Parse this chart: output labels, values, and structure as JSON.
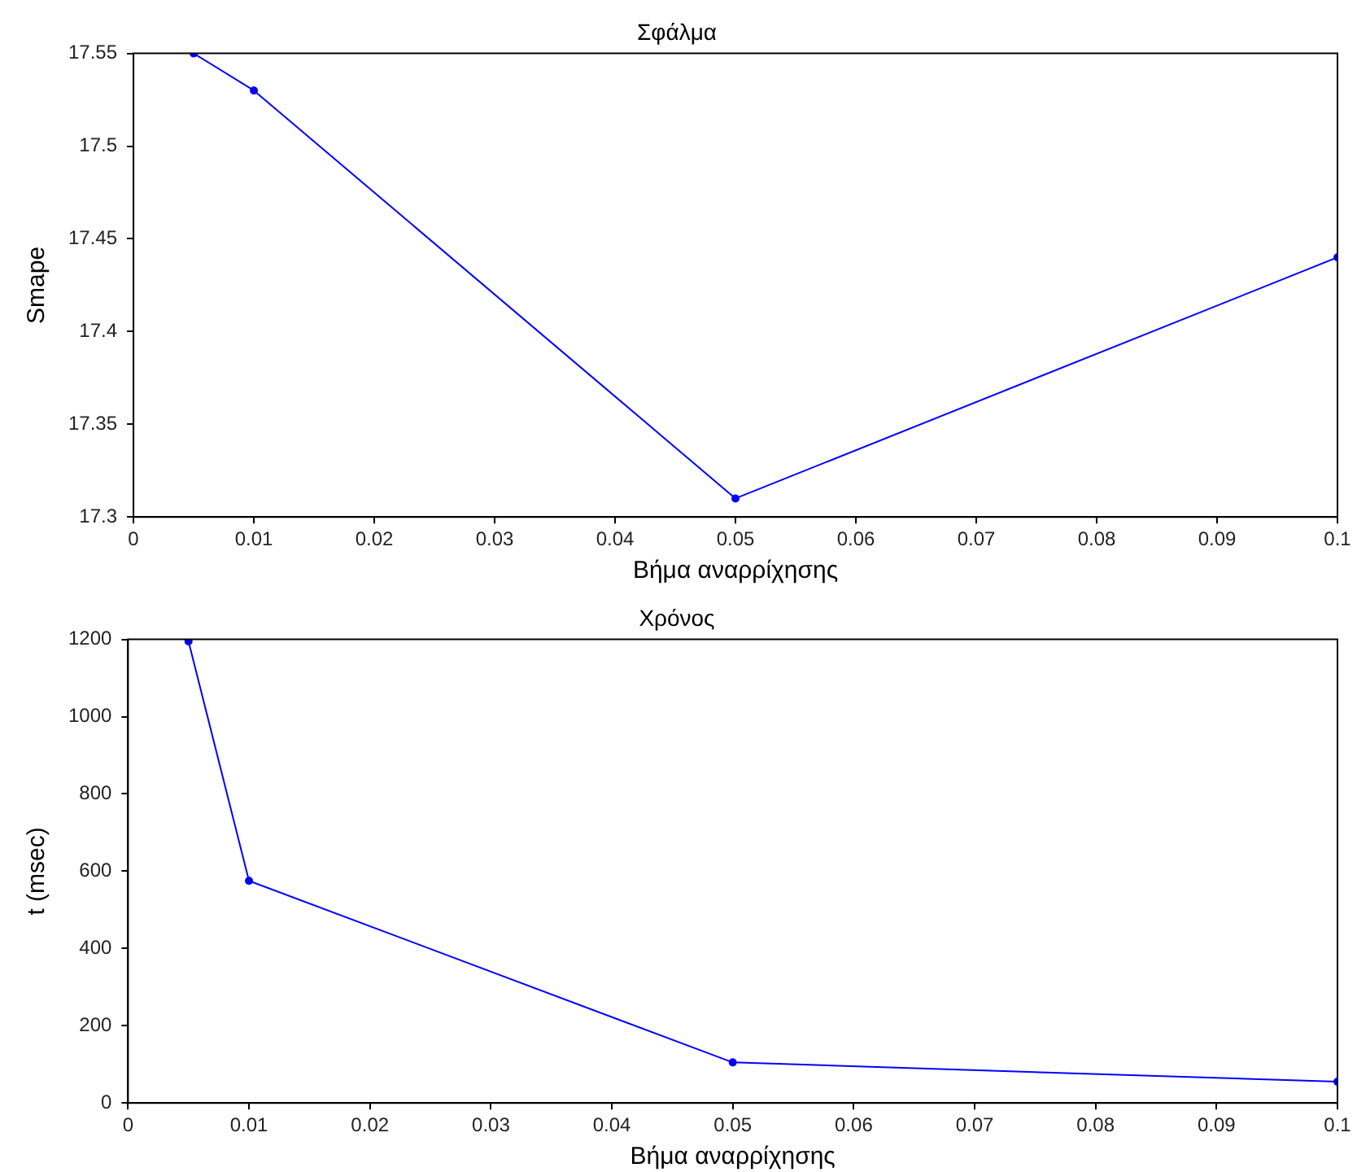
{
  "chart_data": [
    {
      "type": "line",
      "title": "Σφάλμα",
      "xlabel": "Βήμα αναρρίχησης",
      "ylabel": "Smape",
      "x": [
        0.005,
        0.01,
        0.05,
        0.1
      ],
      "series": [
        {
          "color": "#0000ff",
          "values": [
            17.55,
            17.53,
            17.31,
            17.44
          ]
        }
      ],
      "xlim": [
        0,
        0.1
      ],
      "xticks": [
        0,
        0.01,
        0.02,
        0.03,
        0.04,
        0.05,
        0.06,
        0.07,
        0.08,
        0.09,
        0.1
      ],
      "ylim": [
        17.3,
        17.55
      ],
      "yticks": [
        17.3,
        17.35,
        17.4,
        17.45,
        17.5,
        17.55
      ],
      "grid": false,
      "legend": false,
      "marker": "circle",
      "line_style": "solid"
    },
    {
      "type": "line",
      "title": "Χρόνος",
      "xlabel": "Βήμα αναρρίχησης",
      "ylabel": "t (msec)",
      "x": [
        0.005,
        0.01,
        0.05,
        0.1
      ],
      "series": [
        {
          "color": "#0000ff",
          "values": [
            1195,
            575,
            105,
            55
          ]
        }
      ],
      "xlim": [
        0,
        0.1
      ],
      "xticks": [
        0,
        0.01,
        0.02,
        0.03,
        0.04,
        0.05,
        0.06,
        0.07,
        0.08,
        0.09,
        0.1
      ],
      "ylim": [
        0,
        1200
      ],
      "yticks": [
        0,
        200,
        400,
        600,
        800,
        1000,
        1200
      ],
      "grid": false,
      "legend": false,
      "marker": "circle",
      "line_style": "solid"
    }
  ]
}
